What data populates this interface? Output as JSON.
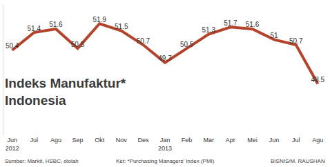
{
  "chart_data": {
    "type": "line",
    "title": "Indeks Manufaktur*\nIndonesia",
    "categories": [
      "Jun\n2012",
      "Jul",
      "Agu",
      "Sep",
      "Okt",
      "Nov",
      "Des",
      "Jan\n2013",
      "Feb",
      "Mar",
      "Apr",
      "Mei",
      "Jun",
      "Jul",
      "Agu"
    ],
    "values": [
      50.4,
      51.4,
      51.6,
      50.5,
      51.9,
      51.5,
      50.7,
      49.7,
      50.5,
      51.3,
      51.7,
      51.6,
      51.0,
      50.7,
      48.5
    ],
    "color": "#b5432b",
    "ylim": [
      45.6,
      53
    ],
    "data_labels": true,
    "tick_labels": "x",
    "grid": false,
    "annotations": [
      "Sumber: Markit, HSBC, diolah",
      "Ket: *Purchasing Managers' Index (PMI)",
      "BISNIS/M. RAUSHAN"
    ]
  }
}
